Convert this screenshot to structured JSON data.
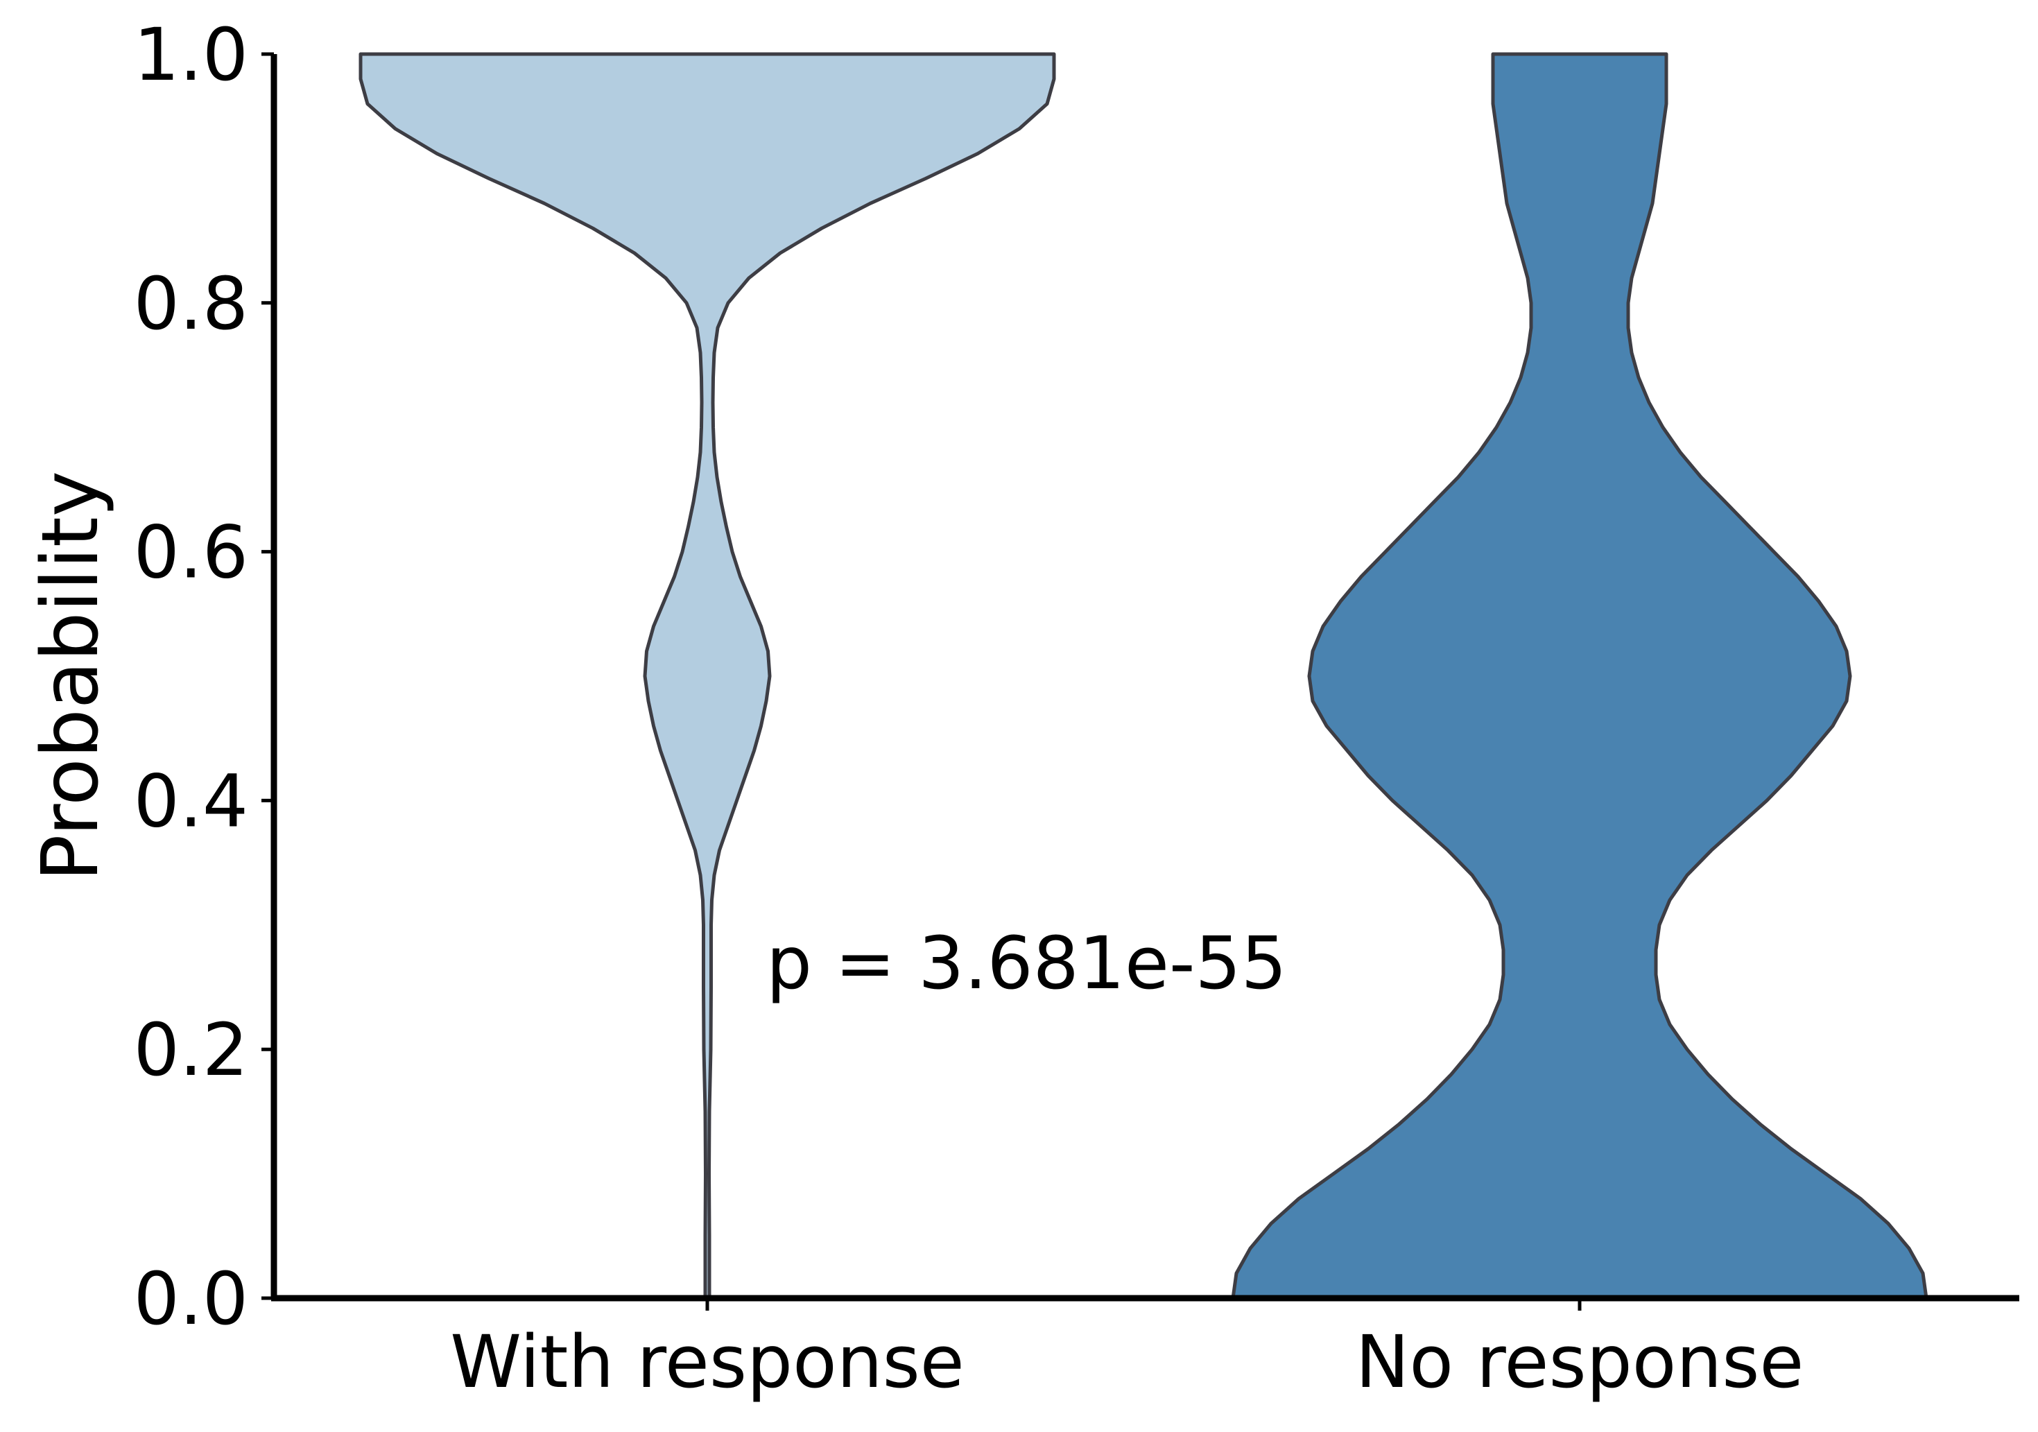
{
  "chart_data": {
    "type": "violin",
    "ylabel": "Probability",
    "ylim": [
      0,
      1
    ],
    "yticks": [
      "0.0",
      "0.2",
      "0.4",
      "0.6",
      "0.8",
      "1.0"
    ],
    "categories": [
      "With response",
      "No response"
    ],
    "annotation": "p = 3.681e-55",
    "grid": false,
    "legend": "none",
    "series": [
      {
        "color": "#b3cde0",
        "density": [
          [
            0.0,
            0.006
          ],
          [
            0.05,
            0.006
          ],
          [
            0.1,
            0.005
          ],
          [
            0.15,
            0.006
          ],
          [
            0.2,
            0.01
          ],
          [
            0.25,
            0.011
          ],
          [
            0.3,
            0.011
          ],
          [
            0.32,
            0.013
          ],
          [
            0.34,
            0.02
          ],
          [
            0.36,
            0.035
          ],
          [
            0.38,
            0.06
          ],
          [
            0.4,
            0.085
          ],
          [
            0.42,
            0.11
          ],
          [
            0.44,
            0.135
          ],
          [
            0.46,
            0.155
          ],
          [
            0.48,
            0.17
          ],
          [
            0.5,
            0.18
          ],
          [
            0.52,
            0.175
          ],
          [
            0.54,
            0.155
          ],
          [
            0.56,
            0.125
          ],
          [
            0.58,
            0.095
          ],
          [
            0.6,
            0.072
          ],
          [
            0.62,
            0.055
          ],
          [
            0.64,
            0.04
          ],
          [
            0.66,
            0.028
          ],
          [
            0.68,
            0.02
          ],
          [
            0.7,
            0.017
          ],
          [
            0.72,
            0.016
          ],
          [
            0.74,
            0.017
          ],
          [
            0.76,
            0.02
          ],
          [
            0.78,
            0.03
          ],
          [
            0.8,
            0.06
          ],
          [
            0.82,
            0.12
          ],
          [
            0.84,
            0.21
          ],
          [
            0.86,
            0.33
          ],
          [
            0.88,
            0.47
          ],
          [
            0.9,
            0.63
          ],
          [
            0.92,
            0.78
          ],
          [
            0.94,
            0.9
          ],
          [
            0.96,
            0.98
          ],
          [
            0.98,
            1.0
          ],
          [
            1.0,
            1.0
          ]
        ]
      },
      {
        "color": "#4a83b0",
        "density": [
          [
            0.0,
            1.0
          ],
          [
            0.02,
            0.99
          ],
          [
            0.04,
            0.95
          ],
          [
            0.06,
            0.89
          ],
          [
            0.08,
            0.81
          ],
          [
            0.1,
            0.71
          ],
          [
            0.12,
            0.61
          ],
          [
            0.14,
            0.52
          ],
          [
            0.16,
            0.44
          ],
          [
            0.18,
            0.37
          ],
          [
            0.2,
            0.31
          ],
          [
            0.22,
            0.26
          ],
          [
            0.24,
            0.23
          ],
          [
            0.26,
            0.22
          ],
          [
            0.28,
            0.22
          ],
          [
            0.3,
            0.23
          ],
          [
            0.32,
            0.26
          ],
          [
            0.34,
            0.31
          ],
          [
            0.36,
            0.38
          ],
          [
            0.38,
            0.46
          ],
          [
            0.4,
            0.54
          ],
          [
            0.42,
            0.61
          ],
          [
            0.44,
            0.67
          ],
          [
            0.46,
            0.73
          ],
          [
            0.48,
            0.77
          ],
          [
            0.5,
            0.78
          ],
          [
            0.52,
            0.77
          ],
          [
            0.54,
            0.74
          ],
          [
            0.56,
            0.69
          ],
          [
            0.58,
            0.63
          ],
          [
            0.6,
            0.56
          ],
          [
            0.62,
            0.49
          ],
          [
            0.64,
            0.42
          ],
          [
            0.66,
            0.35
          ],
          [
            0.68,
            0.29
          ],
          [
            0.7,
            0.24
          ],
          [
            0.72,
            0.2
          ],
          [
            0.74,
            0.17
          ],
          [
            0.76,
            0.15
          ],
          [
            0.78,
            0.14
          ],
          [
            0.8,
            0.14
          ],
          [
            0.82,
            0.15
          ],
          [
            0.84,
            0.17
          ],
          [
            0.86,
            0.19
          ],
          [
            0.88,
            0.21
          ],
          [
            0.9,
            0.22
          ],
          [
            0.92,
            0.23
          ],
          [
            0.94,
            0.24
          ],
          [
            0.96,
            0.25
          ],
          [
            0.98,
            0.25
          ],
          [
            1.0,
            0.25
          ]
        ]
      }
    ]
  }
}
